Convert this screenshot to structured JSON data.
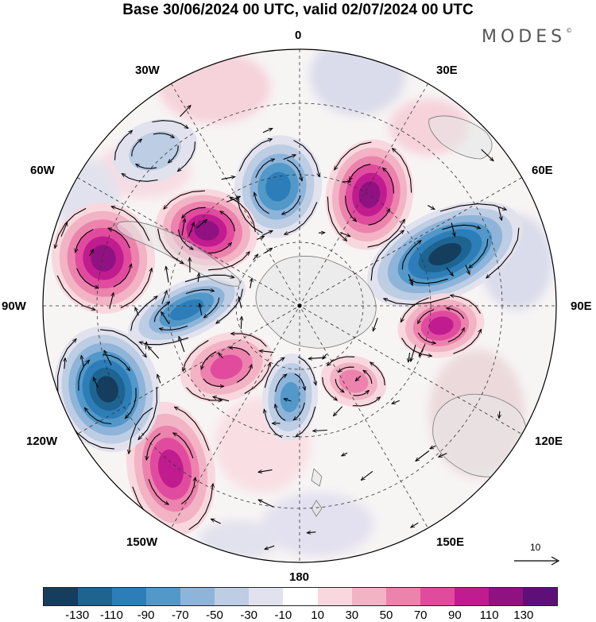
{
  "title": "Base 30/06/2024 00 UTC, valid 02/07/2024 00 UTC",
  "brand": "MODES",
  "brand_mark": "©",
  "longitude_labels": {
    "lon_0": "0",
    "lon_30e": "30E",
    "lon_60e": "60E",
    "lon_90e": "90E",
    "lon_120e": "120E",
    "lon_150e": "150E",
    "lon_180": "180",
    "lon_150w": "150W",
    "lon_120w": "120W",
    "lon_90w": "90W",
    "lon_60w": "60W",
    "lon_30w": "30W"
  },
  "reference_vector": "10",
  "colorbar": {
    "colors": [
      "#143d5e",
      "#1d6491",
      "#2d7eb8",
      "#5298c8",
      "#8fb4d9",
      "#bccde4",
      "#e2e2ee",
      "#ffffff",
      "#f8d8de",
      "#f2b3c5",
      "#ec83ad",
      "#e14b9e",
      "#c01c8f",
      "#901282",
      "#5e0f78"
    ],
    "tick_labels": [
      "-130",
      "-110",
      "-90",
      "-70",
      "-50",
      "-30",
      "-10",
      "10",
      "30",
      "50",
      "70",
      "90",
      "110",
      "130"
    ]
  },
  "anomaly_centers": [
    {
      "sign": "negative",
      "level": 30,
      "region": "north Atlantic 40W"
    },
    {
      "sign": "negative",
      "level": 90,
      "region": "north of 0E"
    },
    {
      "sign": "positive",
      "level": 110,
      "region": "30E"
    },
    {
      "sign": "negative",
      "level": 130,
      "region": "60E-75E"
    },
    {
      "sign": "positive",
      "level": 90,
      "region": "95E"
    },
    {
      "sign": "positive",
      "level": 50,
      "region": "160E"
    },
    {
      "sign": "negative",
      "level": 70,
      "region": "170W"
    },
    {
      "sign": "positive",
      "level": 70,
      "region": "150W"
    },
    {
      "sign": "positive",
      "level": 90,
      "region": "140W"
    },
    {
      "sign": "negative",
      "level": 130,
      "region": "115W"
    },
    {
      "sign": "negative",
      "level": 90,
      "region": "95W"
    },
    {
      "sign": "positive",
      "level": 110,
      "region": "75W"
    },
    {
      "sign": "positive",
      "level": 110,
      "region": "55W"
    }
  ]
}
